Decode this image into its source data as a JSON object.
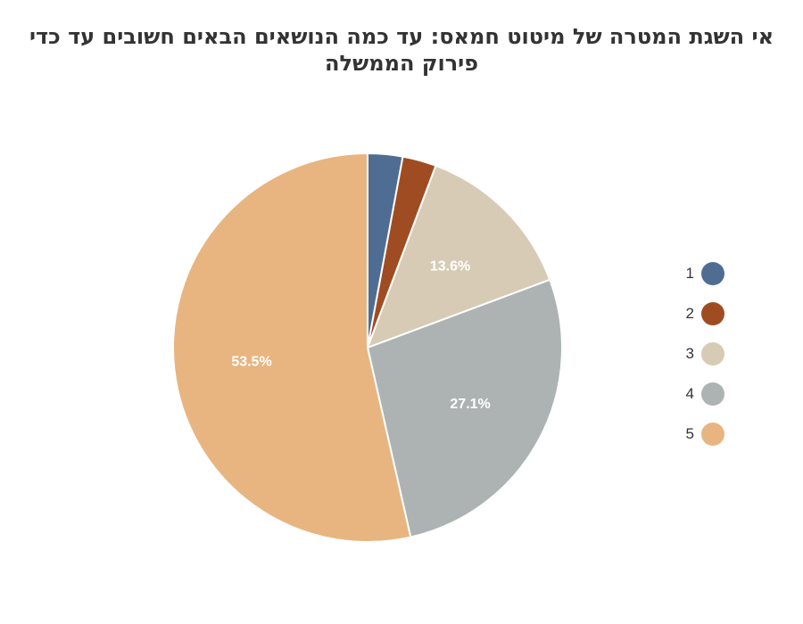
{
  "chart_data": {
    "type": "pie",
    "title": "אי השגת המטרה של מיטוט חמאס: עד כמה הנושאים הבאים חשובים עד כדי  פירוק הממשלה",
    "categories": [
      "1",
      "2",
      "3",
      "4",
      "5"
    ],
    "values": [
      2.9,
      2.8,
      13.6,
      27.1,
      53.5
    ],
    "data_labels": [
      "",
      "",
      "13.6%",
      "27.1%",
      "53.5%"
    ],
    "colors": [
      "#4f6d93",
      "#a04c22",
      "#d7cbb5",
      "#adb3b3",
      "#e8b580"
    ],
    "legend_position": "right"
  }
}
